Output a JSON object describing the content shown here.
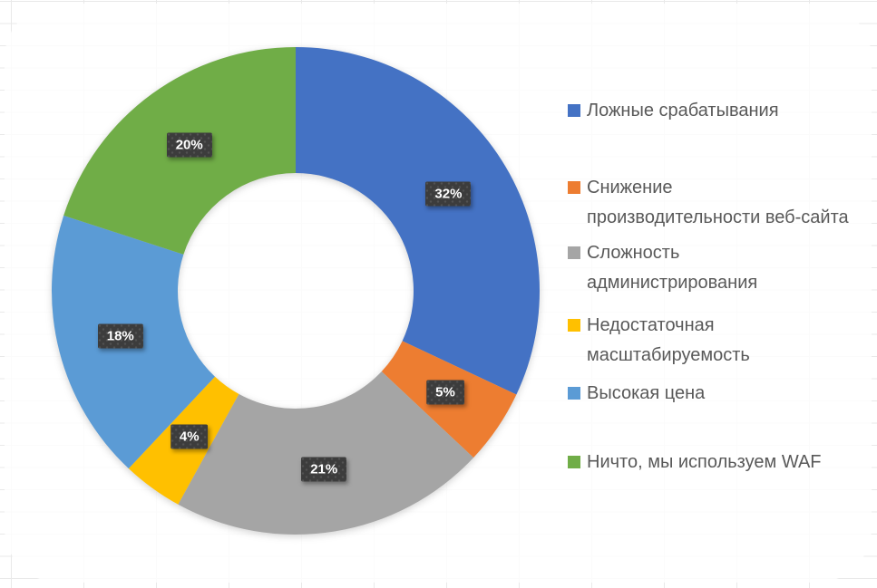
{
  "chart_data": {
    "type": "pie",
    "subtype": "doughnut",
    "title": "",
    "legend_position": "right",
    "start_angle_deg": 0,
    "direction": "clockwise",
    "hole_ratio": 0.48,
    "categories": [
      "Ложные срабатывания",
      "Снижение производительности веб-сайта",
      "Сложность администрирования",
      "Недостаточная масштабируемость",
      "Высокая цена",
      "Ничто, мы используем WAF"
    ],
    "values": [
      32,
      5,
      21,
      4,
      18,
      20
    ],
    "slices": [
      {
        "label": "Ложные срабатывания",
        "value": 32,
        "value_label": "32%",
        "color": "#4472C4"
      },
      {
        "label": "Снижение производительности веб-сайта",
        "value": 5,
        "value_label": "5%",
        "color": "#ED7D31"
      },
      {
        "label": "Сложность администрирования",
        "value": 21,
        "value_label": "21%",
        "color": "#A5A5A5"
      },
      {
        "label": "Недостаточная масштабируемость",
        "value": 4,
        "value_label": "4%",
        "color": "#FFC000"
      },
      {
        "label": "Высокая цена",
        "value": 18,
        "value_label": "18%",
        "color": "#5B9BD5"
      },
      {
        "label": "Ничто, мы используем WAF",
        "value": 20,
        "value_label": "20%",
        "color": "#70AD47"
      }
    ]
  },
  "legend": {
    "items": [
      {
        "text": "Ложные срабатывания"
      },
      {
        "text": "Снижение\nпроизводительности веб-сайта"
      },
      {
        "text": "Сложность\nадминистрирования"
      },
      {
        "text": "Недостаточная\nмасштабируемость"
      },
      {
        "text": "Высокая цена"
      },
      {
        "text": "Ничто, мы используем WAF"
      }
    ]
  },
  "style": {
    "label_badge_bg": "#3C3C3C",
    "label_badge_text": "#FFFFFF",
    "legend_text_color": "#595959",
    "grid_line_color": "#E9E9E9",
    "card_bg": "#FFFFFF"
  }
}
